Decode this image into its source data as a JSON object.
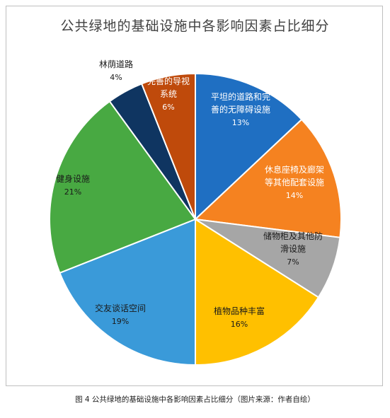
{
  "chart_data": {
    "type": "pie",
    "title": "公共绿地的基础设施中各影响因素占比细分",
    "slices": [
      {
        "label_lines": [
          "平坦的道路和完",
          "善的无障碍设施"
        ],
        "value_label": "13%",
        "value": 13,
        "color": "#1f6fc2",
        "text_color": "#ffffff"
      },
      {
        "label_lines": [
          "休息座椅及廊架",
          "等其他配套设施"
        ],
        "value_label": "14%",
        "value": 14,
        "color": "#f58220",
        "text_color": "#ffffff"
      },
      {
        "label_lines": [
          "储物柜及其他防",
          "滑设施"
        ],
        "value_label": "7%",
        "value": 7,
        "color": "#a6a6a6",
        "text_color": "#1a1a1a"
      },
      {
        "label_lines": [
          "植物品种丰富"
        ],
        "value_label": "16%",
        "value": 16,
        "color": "#ffc000",
        "text_color": "#1a1a1a"
      },
      {
        "label_lines": [
          "交友谈话空间"
        ],
        "value_label": "19%",
        "value": 19,
        "color": "#3a9ad9",
        "text_color": "#1a1a1a"
      },
      {
        "label_lines": [
          "健身设施"
        ],
        "value_label": "21%",
        "value": 21,
        "color": "#48a942",
        "text_color": "#1a1a1a"
      },
      {
        "label_lines": [
          "林荫道路"
        ],
        "value_label": "4%",
        "value": 4,
        "color": "#0f3561",
        "text_color": "#1a1a1a"
      },
      {
        "label_lines": [
          "完善的导视",
          "系统"
        ],
        "value_label": "6%",
        "value": 6,
        "color": "#bf4a0b",
        "text_color": "#ffffff"
      }
    ]
  },
  "caption": "图 4 公共绿地的基础设施中各影响因素占比细分（图片来源：作者自绘）"
}
